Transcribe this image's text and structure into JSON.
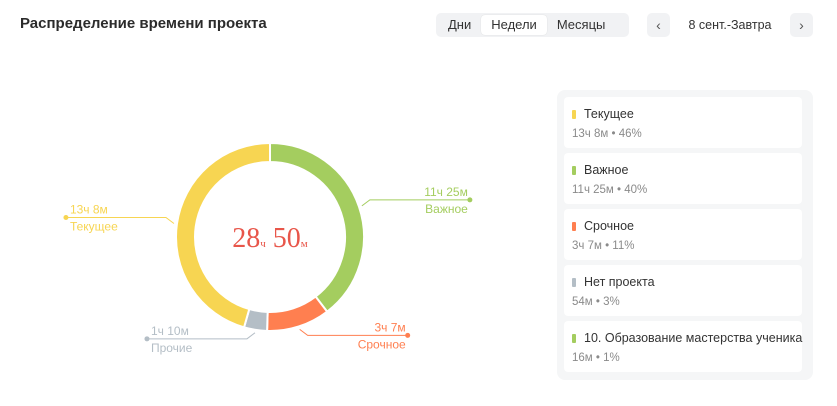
{
  "header": {
    "title": "Распределение времени проекта",
    "segments": [
      "Дни",
      "Недели",
      "Месяцы"
    ],
    "active_segment": "Недели",
    "prev_icon": "chevron-left-icon",
    "next_icon": "chevron-right-icon",
    "date_range": "8 сент.-Завтра"
  },
  "center": {
    "hours": "28",
    "hours_unit": "ч",
    "minutes": "50",
    "minutes_unit": "м",
    "color": "#e8564a"
  },
  "chart_data": {
    "type": "pie",
    "donut": true,
    "total_label": "28ч 50м",
    "series": [
      {
        "name": "Важное",
        "time": "11ч 25м",
        "percent": 40,
        "color": "#a4cd5f"
      },
      {
        "name": "Срочное",
        "time": "3ч 7м",
        "percent": 11,
        "color": "#ff7f50"
      },
      {
        "name": "Прочие",
        "time": "1ч 10м",
        "percent": 4,
        "color": "#b4bec6"
      },
      {
        "name": "Текущее",
        "time": "13ч 8м",
        "percent": 46,
        "color": "#f7d552"
      }
    ]
  },
  "legend": [
    {
      "name": "Текущее",
      "value": "13ч 8м • 46%",
      "color": "#f7d552"
    },
    {
      "name": "Важное",
      "value": "11ч 25м • 40%",
      "color": "#a4cd5f"
    },
    {
      "name": "Срочное",
      "value": "3ч 7м • 11%",
      "color": "#ff7f50"
    },
    {
      "name": "Нет проекта",
      "value": "54м • 3%",
      "color": "#b4bec6"
    },
    {
      "name": "10. Образование мастерства ученика",
      "value": "16м • 1%",
      "color": "#a4cd5f"
    }
  ]
}
